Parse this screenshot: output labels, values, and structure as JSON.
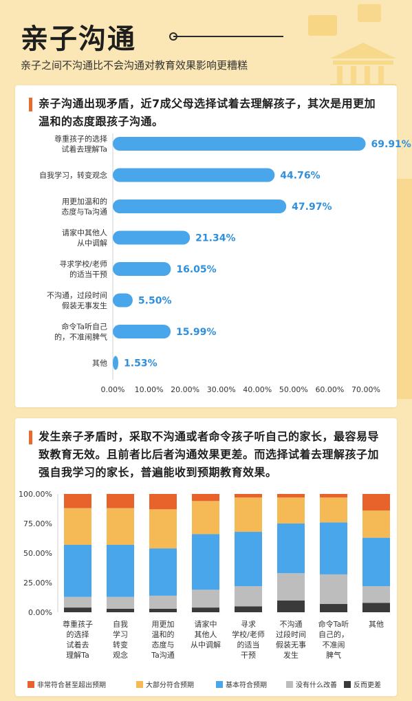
{
  "header": {
    "title": "亲子沟通",
    "subtitle": "亲子之间不沟通比不会沟通对教育效果影响更糟糕"
  },
  "colors": {
    "accent": "#e86a2c",
    "bar_blue": "#4aa6ea",
    "value_blue": "#2f8fdc",
    "seg_red": "#e8622c",
    "seg_yellow": "#f5b955",
    "seg_blue": "#4aa6ea",
    "seg_grey": "#bdbdbd",
    "seg_dark": "#3a3a3a"
  },
  "section1": {
    "heading": "亲子沟通出现矛盾，近7成父母选择试着去理解孩子，其次是用更加温和的态度跟孩子沟通。"
  },
  "section2": {
    "heading": "发生亲子矛盾时，采取不沟通或者命令孩子听自己的家长，最容易导致教育无效。且前者比后者沟通效果更差。而选择试着去理解孩子加强自我学习的家长，普遍能收到预期教育效果。"
  },
  "chart_data": [
    {
      "type": "bar",
      "orientation": "horizontal",
      "categories": [
        [
          "尊重孩子的选择",
          "试着去理解Ta"
        ],
        [
          "自我学习，转变观念"
        ],
        [
          "用更加温和的",
          "态度与Ta沟通"
        ],
        [
          "请家中其他人",
          "从中调解"
        ],
        [
          "寻求学校/老师",
          "的适当干预"
        ],
        [
          "不沟通，过段时间",
          "假装无事发生"
        ],
        [
          "命令Ta听自己",
          "的，不准闹脾气"
        ],
        [
          "其他"
        ]
      ],
      "values": [
        69.91,
        44.76,
        47.97,
        21.34,
        16.05,
        5.5,
        15.99,
        1.53
      ],
      "value_labels": [
        "69.91%",
        "44.76%",
        "47.97%",
        "21.34%",
        "16.05%",
        "5.50%",
        "15.99%",
        "1.53%"
      ],
      "xlim": [
        0,
        70
      ],
      "xticks": [
        "0.00%",
        "10.00%",
        "20.00%",
        "30.00%",
        "40.00%",
        "50.00%",
        "60.00%",
        "70.00%"
      ],
      "grid": false
    },
    {
      "type": "bar",
      "stacked": true,
      "categories": [
        [
          "尊重孩子",
          "的选择",
          "试着去",
          "理解Ta"
        ],
        [
          "自我",
          "学习",
          "转变",
          "观念"
        ],
        [
          "用更加",
          "温和的",
          "态度与",
          "Ta沟通"
        ],
        [
          "请家中",
          "其他人",
          "从中调解"
        ],
        [
          "寻求",
          "学校/老师",
          "的适当",
          "干预"
        ],
        [
          "不沟通",
          "过段时间",
          "假装无事",
          "发生"
        ],
        [
          "命令Ta听",
          "自己的，",
          "不准闹",
          "脾气"
        ],
        [
          "其他"
        ]
      ],
      "series": [
        {
          "name": "反而更差",
          "values": [
            4,
            3,
            3,
            4,
            5,
            10,
            7,
            8
          ]
        },
        {
          "name": "没有什么改善",
          "values": [
            9,
            10,
            11,
            15,
            17,
            23,
            25,
            14
          ]
        },
        {
          "name": "基本符合预期",
          "values": [
            44,
            44,
            40,
            47,
            46,
            42,
            44,
            41
          ]
        },
        {
          "name": "大部分符合预期",
          "values": [
            31,
            31,
            33,
            28,
            29,
            22,
            21,
            23
          ]
        },
        {
          "name": "非常符合甚至超出预期",
          "values": [
            12,
            12,
            13,
            6,
            3,
            3,
            3,
            14
          ]
        }
      ],
      "legend_order": [
        "非常符合甚至超出预期",
        "大部分符合预期",
        "基本符合预期",
        "没有什么改善",
        "反而更差"
      ],
      "ylim": [
        0,
        100
      ],
      "yticks": [
        "0.00%",
        "25.00%",
        "50.00%",
        "75.00%",
        "100.00%"
      ],
      "legend": "bottom",
      "grid": false
    }
  ]
}
